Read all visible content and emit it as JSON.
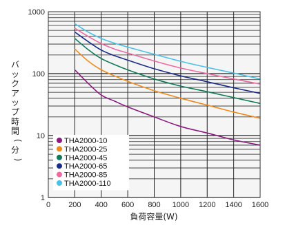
{
  "chart_data": {
    "type": "line",
    "xlabel": "負荷容量(W)",
    "ylabel": "バックアップ時間(分)",
    "xlim": [
      0,
      1600
    ],
    "ylim": [
      1,
      1000
    ],
    "yscale": "log",
    "xticks": [
      0,
      200,
      400,
      600,
      800,
      1000,
      1200,
      1400,
      1600
    ],
    "yticks": [
      1,
      10,
      100,
      1000
    ],
    "grid": true,
    "legend_position": "bottom-left",
    "series": [
      {
        "name": "THA2000-10",
        "color": "#8b1a80",
        "x": [
          200,
          300,
          400,
          500,
          600,
          800,
          1000,
          1200,
          1400,
          1600
        ],
        "y": [
          115,
          70,
          45,
          36,
          29,
          20,
          14,
          11,
          8.5,
          7
        ]
      },
      {
        "name": "THA2000-25",
        "color": "#f08a1c",
        "x": [
          200,
          300,
          400,
          500,
          600,
          800,
          1000,
          1200,
          1400,
          1600
        ],
        "y": [
          250,
          160,
          115,
          92,
          75,
          53,
          40,
          31,
          24,
          19
        ]
      },
      {
        "name": "THA2000-45",
        "color": "#0f7a5a",
        "x": [
          200,
          300,
          400,
          500,
          600,
          800,
          1000,
          1200,
          1400,
          1600
        ],
        "y": [
          370,
          245,
          175,
          140,
          115,
          82,
          63,
          51,
          41,
          33
        ]
      },
      {
        "name": "THA2000-65",
        "color": "#1a2a8a",
        "x": [
          200,
          300,
          400,
          500,
          600,
          800,
          1000,
          1200,
          1400,
          1600
        ],
        "y": [
          470,
          330,
          240,
          195,
          165,
          120,
          92,
          74,
          59,
          48
        ]
      },
      {
        "name": "THA2000-85",
        "color": "#ee6aa0",
        "x": [
          200,
          300,
          400,
          500,
          600,
          800,
          1000,
          1200,
          1400,
          1600
        ],
        "y": [
          540,
          400,
          305,
          250,
          215,
          160,
          123,
          100,
          82,
          68
        ]
      },
      {
        "name": "THA2000-110",
        "color": "#4bc0e8",
        "x": [
          200,
          300,
          400,
          500,
          600,
          800,
          1000,
          1200,
          1400,
          1600
        ],
        "y": [
          640,
          470,
          370,
          310,
          268,
          205,
          158,
          126,
          102,
          82
        ]
      }
    ]
  }
}
